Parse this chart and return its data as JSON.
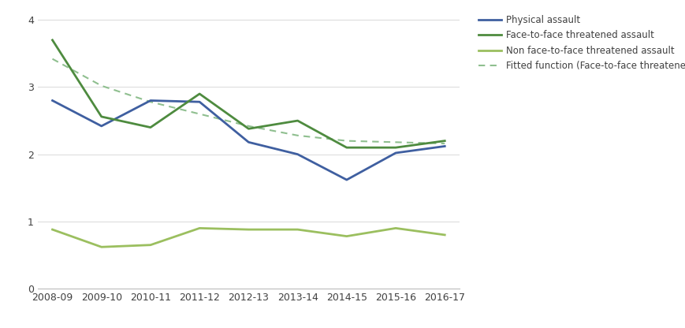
{
  "years": [
    "2008-09",
    "2009-10",
    "2010-11",
    "2011-12",
    "2012-13",
    "2013-14",
    "2014-15",
    "2015-16",
    "2016-17"
  ],
  "physical_assault": [
    2.8,
    2.42,
    2.8,
    2.78,
    2.18,
    2.0,
    1.62,
    2.02,
    2.12
  ],
  "face_to_face": [
    3.7,
    2.56,
    2.4,
    2.9,
    2.38,
    2.5,
    2.1,
    2.1,
    2.2
  ],
  "non_face_to_face": [
    0.88,
    0.62,
    0.65,
    0.9,
    0.88,
    0.88,
    0.78,
    0.9,
    0.8
  ],
  "fitted": [
    3.42,
    3.02,
    2.78,
    2.6,
    2.42,
    2.28,
    2.2,
    2.18,
    2.16
  ],
  "physical_color": "#3F5FA0",
  "face_to_face_color": "#4E8B3F",
  "non_face_color": "#9BBF5F",
  "fitted_color": "#8FBF8F",
  "ylim": [
    0,
    4.15
  ],
  "yticks": [
    0,
    1,
    2,
    3,
    4
  ],
  "legend_labels": [
    "Physical assault",
    "Face-to-face threatened assault",
    "Non face-to-face threatened assault",
    "Fitted function (Face-to-face threatened assault)"
  ],
  "text_color": "#404040"
}
